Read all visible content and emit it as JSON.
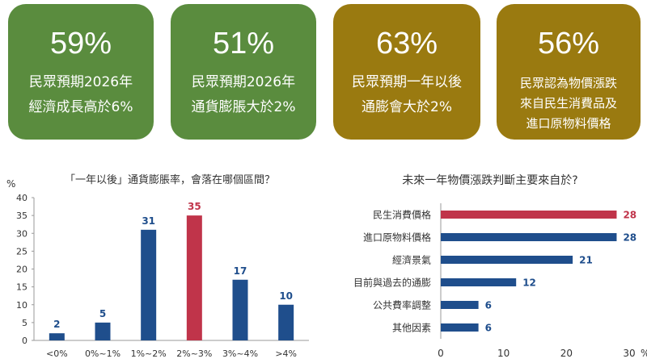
{
  "cards": [
    {
      "pct": "59%",
      "text": "民眾預期2026年\n經濟成長高於6%",
      "color": "#5a8c3e"
    },
    {
      "pct": "51%",
      "text": "民眾預期2026年\n通貨膨脹大於2%",
      "color": "#5a8c3e"
    },
    {
      "pct": "63%",
      "text": "民眾預期一年以後\n通膨會大於2%",
      "color": "#9a7a10"
    },
    {
      "pct": "56%",
      "text": "民眾認為物價漲跌\n來自民生消費品及\n進口原物料價格",
      "color": "#9a7a10"
    }
  ],
  "chart_data": [
    {
      "type": "bar",
      "title": "「一年以後」通貨膨脹率，會落在哪個區間？",
      "ylabel": "%",
      "categories": [
        "<0%",
        "0%~1%",
        "1%~2%",
        "2%~3%",
        "3%~4%",
        ">4%"
      ],
      "values": [
        2,
        5,
        31,
        35,
        17,
        10
      ],
      "highlight_index": 3,
      "ylim": [
        0,
        40
      ],
      "yticks": [
        0,
        5,
        10,
        15,
        20,
        25,
        30,
        35,
        40
      ],
      "colors": {
        "bar": "#1f4e8c",
        "highlight": "#c0344a",
        "label": "#1f4e8c",
        "highlight_label": "#c0344a"
      }
    },
    {
      "type": "bar",
      "orientation": "horizontal",
      "title": "未來一年物價漲跌判斷主要來自於?",
      "xlabel": "%",
      "categories": [
        "民生消費價格",
        "進口原物料價格",
        "經濟景氣",
        "目前與過去的通膨",
        "公共費率調整",
        "其他因素"
      ],
      "values": [
        28,
        28,
        21,
        12,
        6,
        6
      ],
      "highlight_index": 0,
      "xlim": [
        0,
        30
      ],
      "xticks": [
        0,
        10,
        20,
        30
      ],
      "colors": {
        "bar": "#1f4e8c",
        "highlight": "#c0344a",
        "label": "#1f4e8c",
        "highlight_label": "#c0344a"
      }
    }
  ]
}
